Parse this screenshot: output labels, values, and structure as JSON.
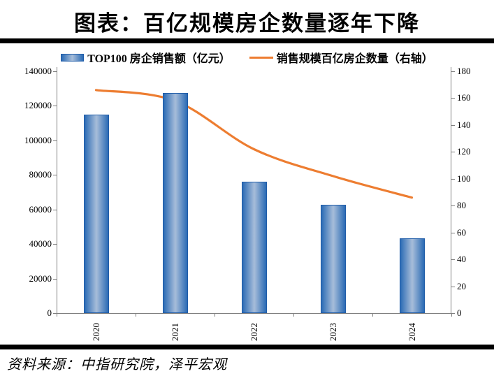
{
  "chart_data": {
    "type": "combo-bar-line",
    "title": "图表：百亿规模房企数量逐年下降",
    "source": "资料来源：中指研究院，泽平宏观",
    "categories": [
      "2020",
      "2021",
      "2022",
      "2023",
      "2024"
    ],
    "series": [
      {
        "name": "TOP100 房企销售额（亿元）",
        "type": "bar",
        "axis": "left",
        "values": [
          115000,
          127500,
          76000,
          62800,
          43300
        ]
      },
      {
        "name": "销售规模百亿房企数量（右轴）",
        "type": "line",
        "axis": "right",
        "values": [
          166,
          158,
          122,
          102,
          86
        ]
      }
    ],
    "left_axis": {
      "min": 0,
      "max": 140000,
      "step": 20000,
      "ticks": [
        "140000",
        "120000",
        "100000",
        "80000",
        "60000",
        "40000",
        "20000",
        "0"
      ]
    },
    "right_axis": {
      "min": 0,
      "max": 180,
      "step": 20,
      "ticks": [
        "180",
        "160",
        "140",
        "120",
        "100",
        "80",
        "60",
        "40",
        "20",
        "0"
      ]
    },
    "grid": "off",
    "legend_position": "top-center",
    "colors": {
      "bar_edge": "#2b6bb5",
      "bar_center": "#a7bdd9",
      "bar_border": "#1f5ca8",
      "line": "#ed7d31",
      "axis": "#7f7f7f",
      "rule": "#000000",
      "text": "#000000"
    }
  }
}
